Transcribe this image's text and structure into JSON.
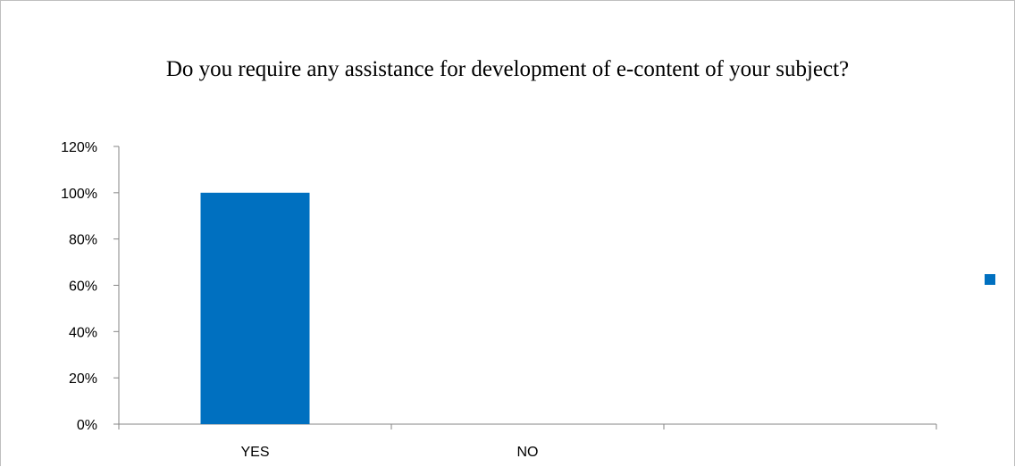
{
  "chart_data": {
    "type": "bar",
    "title": "Do you require any assistance for development of e-content of your subject?",
    "xlabel": "",
    "ylabel": "",
    "categories": [
      "YES",
      "NO",
      ""
    ],
    "series": [
      {
        "values": [
          1.0,
          0,
          0
        ]
      }
    ],
    "ylim": [
      0,
      1.2
    ],
    "yticks": [
      0,
      0.2,
      0.4,
      0.6,
      0.8,
      1.0,
      1.2
    ],
    "ytick_labels": [
      "0%",
      "20%",
      "40%",
      "60%",
      "80%",
      "100%",
      "120%"
    ],
    "grid": false,
    "legend": "right",
    "bar_color": "#0070c0",
    "axis_color": "#868686"
  }
}
